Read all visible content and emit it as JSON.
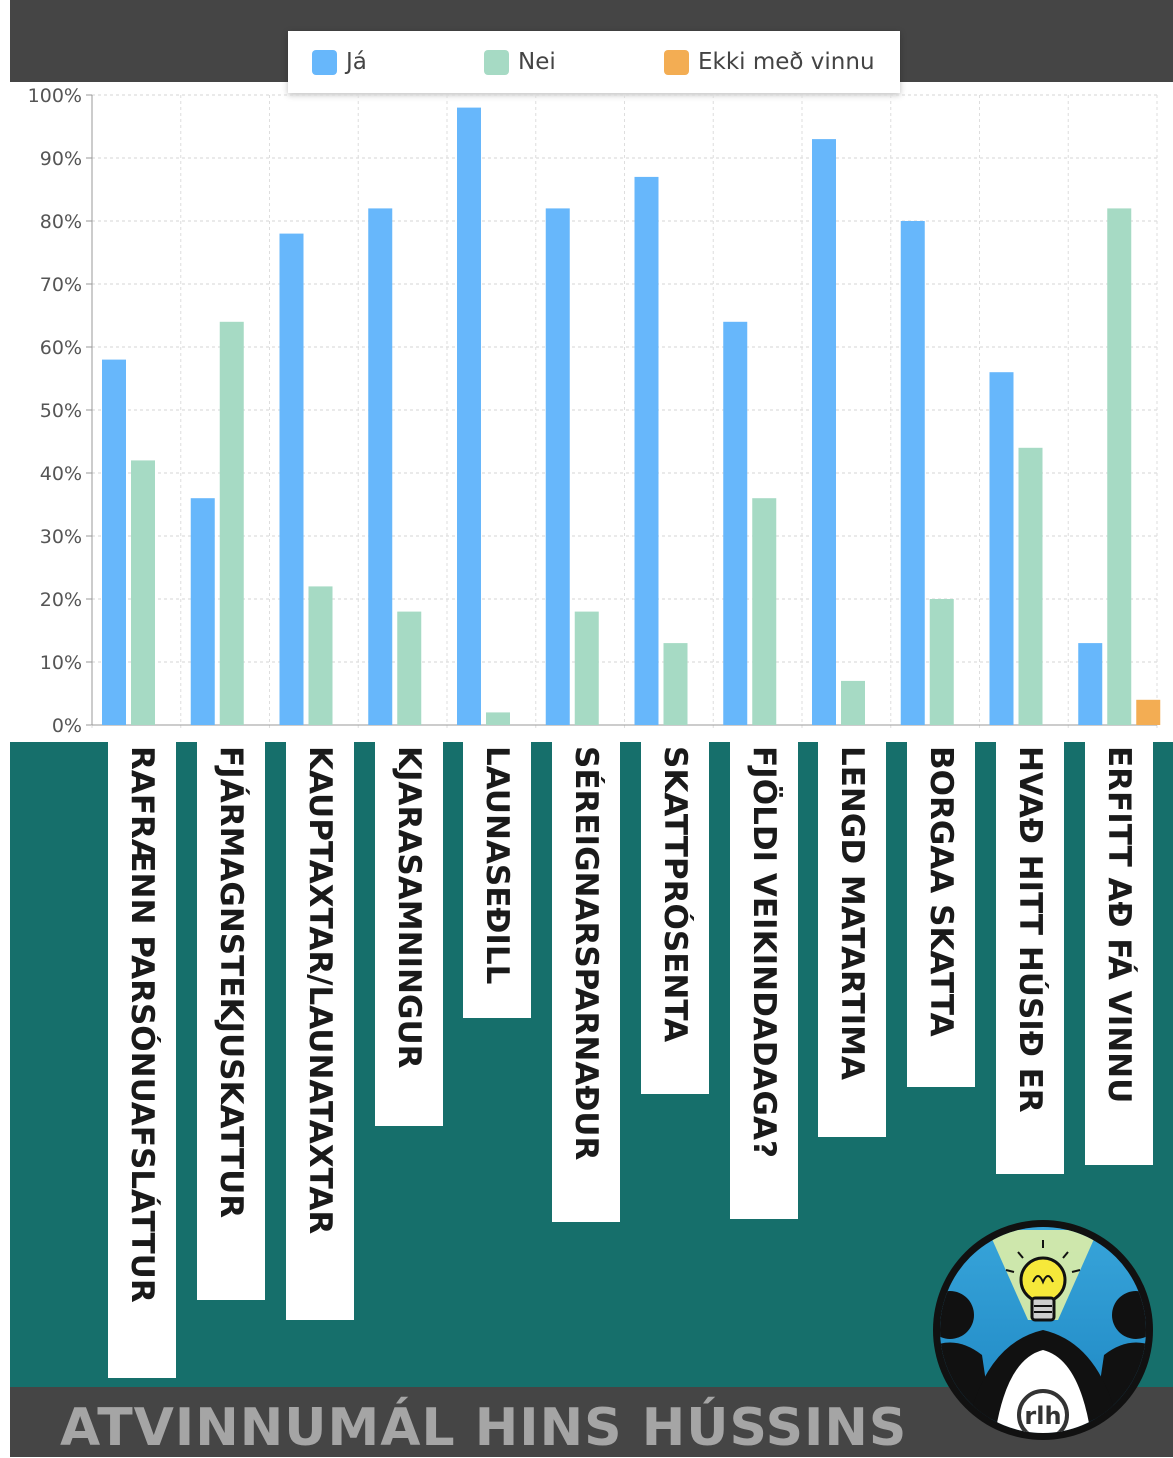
{
  "chart_data": {
    "type": "bar",
    "categories": [
      "RAFRÆNN PARSÓNUAFSLÁTTUR",
      "FJÁRMAGNSTEKJUSKATTUR",
      "KAUPTAXTAR/LAUNATAXTAR",
      "KJARASAMNINGUR",
      "LAUNASEÐILL",
      "SÉREIGNARSPARNAÐUR",
      "SKATTPRÓSENTA",
      "FJÖLDI VEIKINDADAGA?",
      "LENGD MATARTIMA",
      "BORGAA SKATTA",
      "HVAÐ HITT HÚSIÐ ER",
      "ERFITT AÐ FÁ VINNU"
    ],
    "series": [
      {
        "name": "Já",
        "color": "#67b7fb",
        "values": [
          58,
          36,
          78,
          82,
          98,
          82,
          87,
          64,
          93,
          80,
          56,
          13
        ]
      },
      {
        "name": "Nei",
        "color": "#a6dac4",
        "values": [
          42,
          64,
          22,
          18,
          2,
          18,
          13,
          36,
          7,
          20,
          44,
          82
        ]
      },
      {
        "name": "Ekki með vinnu",
        "color": "#f3ad53",
        "values": [
          0,
          0,
          0,
          0,
          0,
          0,
          0,
          0,
          0,
          0,
          0,
          4
        ]
      }
    ],
    "yticks": [
      "0%",
      "10%",
      "20%",
      "30%",
      "40%",
      "50%",
      "60%",
      "70%",
      "80%",
      "90%",
      "100%"
    ],
    "ylim": [
      0,
      100
    ],
    "grid": true,
    "legend_position": "top-center"
  },
  "footer": {
    "title": "ATVINNUMÁL HINS HÚSSINS"
  },
  "logo": {
    "text": "rlh",
    "icon": "lightbulb-icon"
  }
}
